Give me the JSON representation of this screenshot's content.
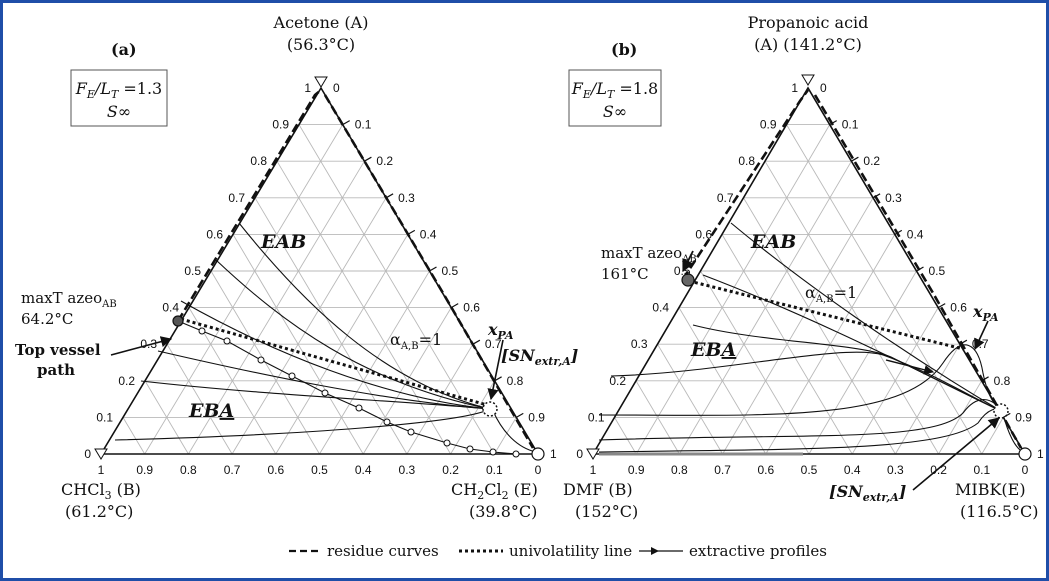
{
  "panels": [
    {
      "label": "(a)",
      "top_vertex": [
        "Acetone (A)",
        "(56.3°C)"
      ],
      "left_vertex": [
        "CHCl",
        "3",
        " (B)",
        "(61.2°C)"
      ],
      "right_vertex": [
        "CH",
        "2",
        "Cl",
        "2",
        " (E)",
        "(39.8°C)"
      ],
      "ratio": [
        "F",
        "E",
        "/L",
        "T",
        " =1.3"
      ],
      "reflux": "S∞",
      "azeo": [
        "maxT azeo",
        "AB",
        "64.2°C"
      ],
      "region_upper": "EAB",
      "region_lower": [
        "EB",
        "A"
      ],
      "alpha": [
        "α",
        "A,B",
        "=1"
      ],
      "xpa": [
        "x",
        "PA"
      ],
      "sn": [
        "[SN",
        "extr,A",
        "]"
      ],
      "top_vessel": [
        "Top vessel",
        "path"
      ],
      "bottom_ticks": [
        "1",
        "0.9",
        "0.8",
        "0.7",
        "0.6",
        "0.5",
        "0.4",
        "0.3",
        "0.2",
        "0.1",
        "0"
      ],
      "left_ticks": [
        "0",
        "0.1",
        "0.2",
        "0.3",
        "0.4",
        "0.5",
        "0.6",
        "0.7",
        "0.8",
        "0.9",
        "1"
      ],
      "right_ticks": [
        "0",
        "0.1",
        "0.2",
        "0.3",
        "0.4",
        "0.5",
        "0.6",
        "0.7",
        "0.8",
        "0.9",
        "1"
      ]
    },
    {
      "label": "(b)",
      "top_vertex": [
        "Propanoic acid",
        "(A) (141.2°C)"
      ],
      "left_vertex": [
        "DMF (B)",
        "(152°C)"
      ],
      "right_vertex": [
        "MIBK(E)",
        "(116.5°C)"
      ],
      "ratio": [
        "F",
        "E",
        "/L",
        "T",
        " =1.8"
      ],
      "reflux": "S∞",
      "azeo": [
        "maxT azeo",
        "AB",
        "161°C"
      ],
      "region_upper": "EAB",
      "region_lower": [
        "EB",
        "A"
      ],
      "alpha": [
        "α",
        "A,B",
        "=1"
      ],
      "xpa": [
        "x",
        "PA"
      ],
      "sn": [
        "[SN",
        "extr,A",
        "]"
      ],
      "bottom_ticks": [
        "1",
        "0.9",
        "0.8",
        "0.7",
        "0.6",
        "0.5",
        "0.4",
        "0.3",
        "0.2",
        "0.1",
        "0"
      ],
      "left_ticks": [
        "0",
        "0.1",
        "0.2",
        "0.3",
        "0.4",
        "0.5",
        "0.6",
        "0.7",
        "0.8",
        "0.9",
        "1"
      ],
      "right_ticks": [
        "0",
        "0.1",
        "0.2",
        "0.3",
        "0.4",
        "0.5",
        "0.6",
        "0.7",
        "0.8",
        "0.9",
        "1"
      ]
    }
  ],
  "legend": {
    "residue": "residue curves",
    "univolatility": "univolatility line",
    "extractive": "extractive profiles"
  }
}
